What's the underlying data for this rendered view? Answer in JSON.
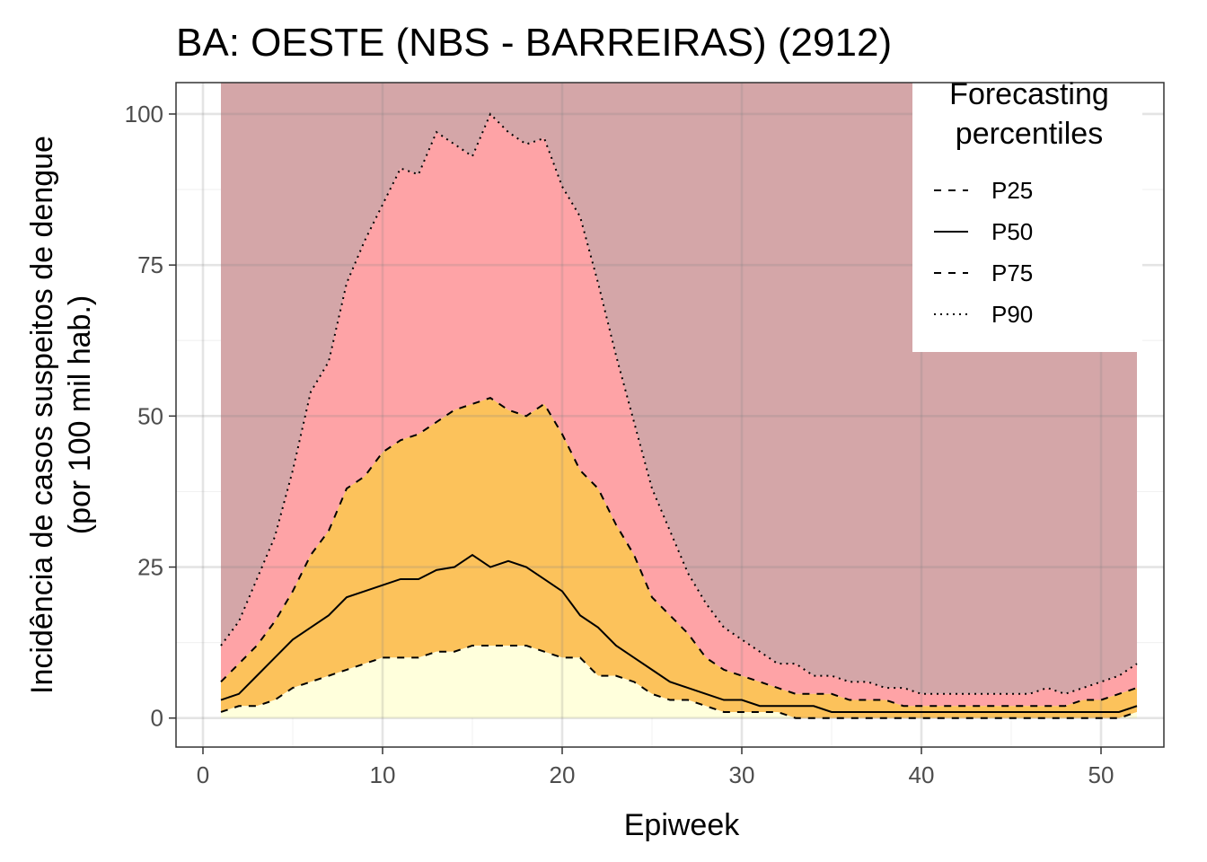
{
  "chart_data": {
    "type": "area",
    "title": "BA: OESTE (NBS - BARREIRAS) (2912)",
    "xlabel": "Epiweek",
    "ylabel_lines": [
      "Incidência de casos suspeitos de dengue",
      "(por 100 mil hab.)"
    ],
    "xlim": [
      -1.5,
      53.5
    ],
    "ylim": [
      -4.8,
      105.2
    ],
    "xticks": [
      0,
      10,
      20,
      30,
      40,
      50
    ],
    "yticks": [
      0,
      25,
      50,
      75,
      100
    ],
    "grid": true,
    "legend": {
      "title_lines": [
        "Forecasting",
        "percentiles"
      ],
      "placement": "top-right",
      "entries": [
        {
          "label": "P25",
          "dash": "dashed"
        },
        {
          "label": "P50",
          "dash": "solid"
        },
        {
          "label": "P75",
          "dash": "dashed"
        },
        {
          "label": "P90",
          "dash": "dotted"
        }
      ]
    },
    "band_colors": {
      "below_p25": "#ffffdc",
      "p25_p75": "#fcc25b",
      "p75_p90": "#fea3a6",
      "above_p90": "#d4a6a8"
    },
    "above_p90_top": 105.2,
    "x": [
      1,
      2,
      3,
      4,
      5,
      6,
      7,
      8,
      9,
      10,
      11,
      12,
      13,
      14,
      15,
      16,
      17,
      18,
      19,
      20,
      21,
      22,
      23,
      24,
      25,
      26,
      27,
      28,
      29,
      30,
      31,
      32,
      33,
      34,
      35,
      36,
      37,
      38,
      39,
      40,
      41,
      42,
      43,
      44,
      45,
      46,
      47,
      48,
      49,
      50,
      51,
      52
    ],
    "series": [
      {
        "name": "P25",
        "values": [
          1,
          2,
          2,
          3,
          5,
          6,
          7,
          8,
          9,
          10,
          10,
          10,
          11,
          11,
          12,
          12,
          12,
          12,
          11,
          10,
          10,
          7,
          7,
          6,
          4,
          3,
          3,
          2,
          1,
          1,
          1,
          1,
          0,
          0,
          0,
          0,
          0,
          0,
          0,
          0,
          0,
          0,
          0,
          0,
          0,
          0,
          0,
          0,
          0,
          0,
          0,
          1
        ]
      },
      {
        "name": "P50",
        "values": [
          3,
          4,
          7,
          10,
          13,
          15,
          17,
          20,
          21,
          22,
          23,
          23,
          24.5,
          25,
          27,
          25,
          26,
          25,
          23,
          21,
          17,
          15,
          12,
          10,
          8,
          6,
          5,
          4,
          3,
          3,
          2,
          2,
          2,
          2,
          1,
          1,
          1,
          1,
          1,
          1,
          1,
          1,
          1,
          1,
          1,
          1,
          1,
          1,
          1,
          1,
          1,
          2
        ]
      },
      {
        "name": "P75",
        "values": [
          6,
          9,
          12,
          16,
          21,
          27,
          31,
          38,
          40,
          44,
          46,
          47,
          49,
          51,
          52,
          53,
          51,
          50,
          52,
          47,
          41,
          38,
          32,
          27,
          20,
          17,
          14,
          10,
          8,
          7,
          6,
          5,
          4,
          4,
          4,
          3,
          3,
          3,
          2,
          2,
          2,
          2,
          2,
          2,
          2,
          2,
          2,
          2,
          3,
          3,
          4,
          5
        ]
      },
      {
        "name": "P90",
        "values": [
          12,
          16,
          23,
          30,
          41,
          54,
          59,
          72,
          79,
          85,
          91,
          90,
          97,
          95,
          93,
          100,
          97,
          95,
          96,
          88,
          83,
          72,
          60,
          49,
          38,
          31,
          24,
          19,
          15,
          13,
          11,
          9,
          9,
          7,
          7,
          6,
          6,
          5,
          5,
          4,
          4,
          4,
          4,
          4,
          4,
          4,
          5,
          4,
          5,
          6,
          7,
          9
        ]
      }
    ]
  }
}
